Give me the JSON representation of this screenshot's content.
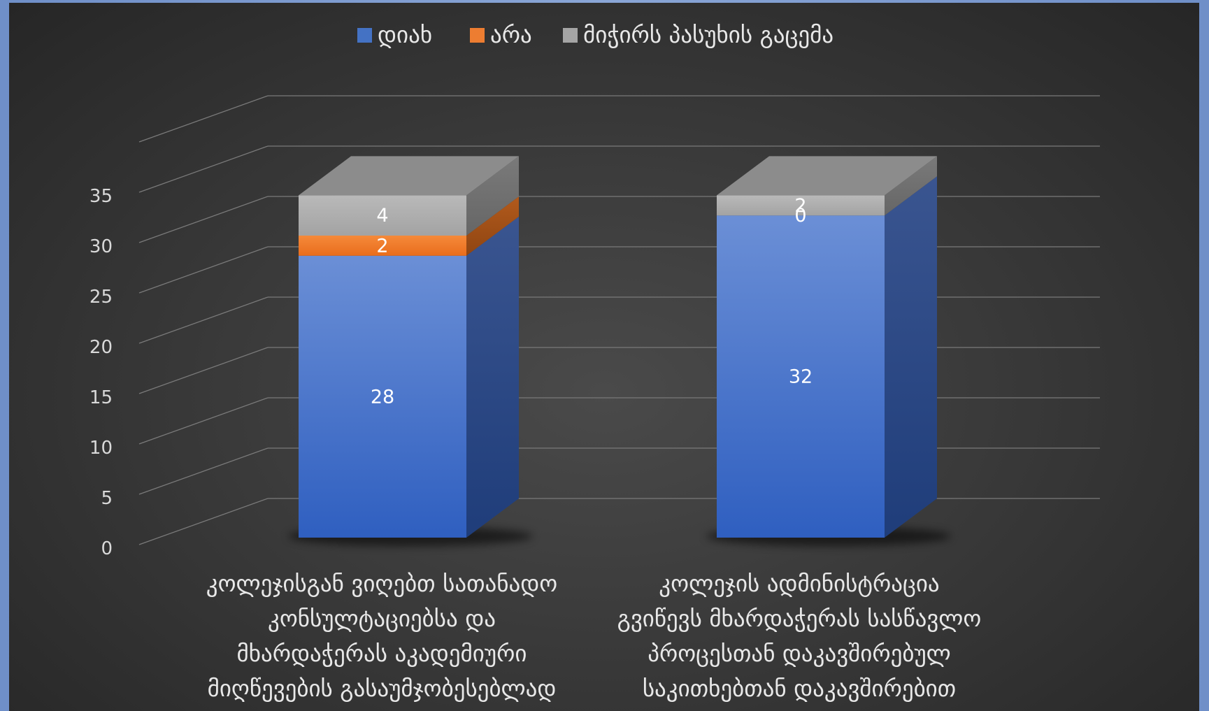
{
  "chart_data": {
    "type": "bar",
    "stacked": true,
    "three_d": true,
    "categories": [
      [
        "კოლეჯისგან ვიღებთ სათანადო",
        "კონსულტაციებსა და",
        "მხარდაჭერას აკადემიური",
        "მიღწევების გასაუმჯობესებლად"
      ],
      [
        "კოლეჯის ადმინისტრაცია",
        "გვიწევს მხარდაჭერას  სასწავლო",
        "პროცესთან დაკავშირებულ",
        "საკითხებთან დაკავშირებით"
      ]
    ],
    "series": [
      {
        "name": "დიახ",
        "values": [
          28,
          32
        ],
        "color": "#4472c4"
      },
      {
        "name": "არა",
        "values": [
          2,
          0
        ],
        "color": "#ed7d31"
      },
      {
        "name": "მიჭირს პასუხის გაცემა",
        "values": [
          4,
          2
        ],
        "color": "#a5a5a5"
      }
    ],
    "ylim": [
      0,
      35
    ],
    "yticks": [
      0,
      5,
      10,
      15,
      20,
      25,
      30,
      35
    ],
    "grid": true,
    "legend": "top"
  }
}
